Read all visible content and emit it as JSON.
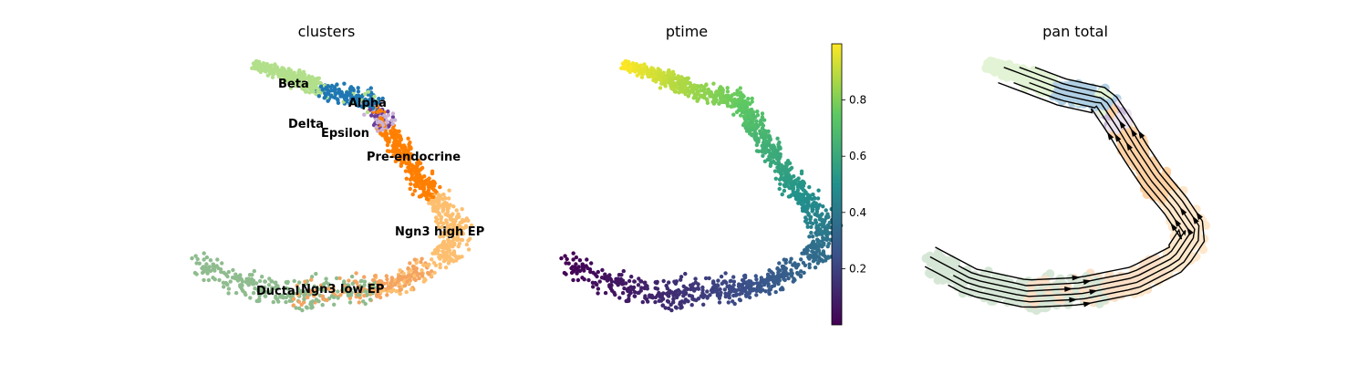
{
  "chart_data": [
    {
      "type": "scatter",
      "title": "clusters",
      "xlabel": "",
      "ylabel": "",
      "grid": false,
      "axes_visible": false,
      "categories": [
        {
          "label": "Ductal",
          "color": "#8fbc8f"
        },
        {
          "label": "Ngn3 low EP",
          "color": "#f4a460"
        },
        {
          "label": "Ngn3 high EP",
          "color": "#fdbf6f"
        },
        {
          "label": "Pre-endocrine",
          "color": "#ff7f00"
        },
        {
          "label": "Beta",
          "color": "#b2df8a"
        },
        {
          "label": "Alpha",
          "color": "#1f78b4"
        },
        {
          "label": "Delta",
          "color": "#6a3d9a"
        },
        {
          "label": "Epsilon",
          "color": "#cab2d6"
        }
      ]
    },
    {
      "type": "scatter",
      "title": "ptime",
      "xlabel": "",
      "ylabel": "",
      "grid": false,
      "axes_visible": false,
      "colormap": "viridis",
      "colorbar": {
        "range": [
          0.0,
          1.0
        ],
        "ticks": [
          0.2,
          0.4,
          0.6,
          0.8
        ],
        "tick_labels": [
          "0.2",
          "0.4",
          "0.6",
          "0.8"
        ]
      }
    },
    {
      "type": "scatter",
      "title": "pan total",
      "xlabel": "",
      "ylabel": "",
      "grid": false,
      "axes_visible": false,
      "overlay": "streamlines"
    }
  ]
}
